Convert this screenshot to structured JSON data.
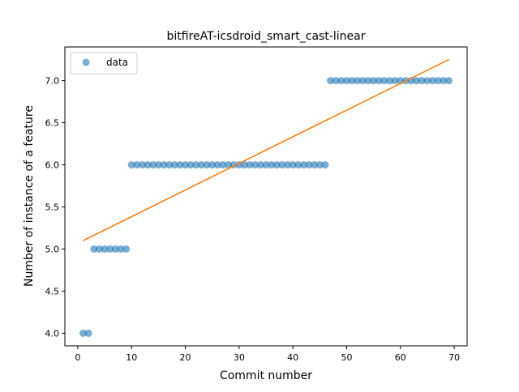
{
  "chart_data": {
    "type": "scatter",
    "title": "bitfireAT-icsdroid_smart_cast-linear",
    "xlabel": "Commit number",
    "ylabel": "Number of instance of a feature",
    "xlim": [
      -2.4,
      72.4
    ],
    "ylim": [
      3.85,
      7.4
    ],
    "xticks": [
      0,
      10,
      20,
      30,
      40,
      50,
      60,
      70
    ],
    "yticks": [
      4.0,
      4.5,
      5.0,
      5.5,
      6.0,
      6.5,
      7.0
    ],
    "xtick_labels": [
      "0",
      "10",
      "20",
      "30",
      "40",
      "50",
      "60",
      "70"
    ],
    "ytick_labels": [
      "4.0",
      "4.5",
      "5.0",
      "5.5",
      "6.0",
      "6.5",
      "7.0"
    ],
    "legend": {
      "position": "top-left",
      "entries": [
        "data"
      ]
    },
    "grid": false,
    "series": [
      {
        "name": "data",
        "kind": "points",
        "color": "#1f77b4",
        "x": [
          1,
          2,
          3,
          4,
          5,
          6,
          7,
          8,
          9,
          10,
          11,
          12,
          13,
          14,
          15,
          16,
          17,
          18,
          19,
          20,
          21,
          22,
          23,
          24,
          25,
          26,
          27,
          28,
          29,
          30,
          31,
          32,
          33,
          34,
          35,
          36,
          37,
          38,
          39,
          40,
          41,
          42,
          43,
          44,
          45,
          46,
          47,
          48,
          49,
          50,
          51,
          52,
          53,
          54,
          55,
          56,
          57,
          58,
          59,
          60,
          61,
          62,
          63,
          64,
          65,
          66,
          67,
          68,
          69
        ],
        "y": [
          4,
          4,
          5,
          5,
          5,
          5,
          5,
          5,
          5,
          6,
          6,
          6,
          6,
          6,
          6,
          6,
          6,
          6,
          6,
          6,
          6,
          6,
          6,
          6,
          6,
          6,
          6,
          6,
          6,
          6,
          6,
          6,
          6,
          6,
          6,
          6,
          6,
          6,
          6,
          6,
          6,
          6,
          6,
          6,
          6,
          6,
          7,
          7,
          7,
          7,
          7,
          7,
          7,
          7,
          7,
          7,
          7,
          7,
          7,
          7,
          7,
          7,
          7,
          7,
          7,
          7,
          7,
          7,
          7
        ]
      },
      {
        "kind": "fit-line",
        "color": "#ff7f0e",
        "x": [
          1,
          69
        ],
        "y": [
          5.1,
          7.25
        ]
      }
    ]
  }
}
